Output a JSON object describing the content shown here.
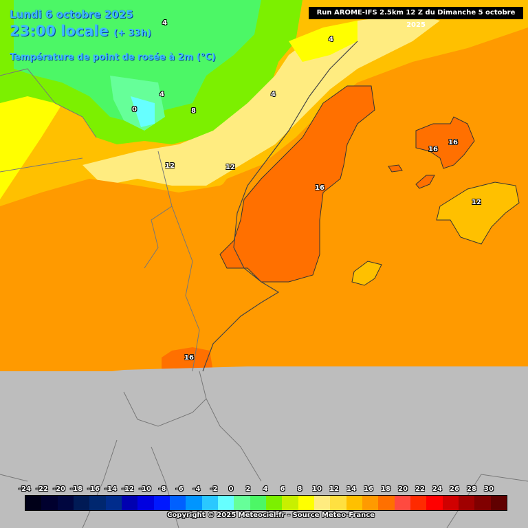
{
  "header": {
    "date": "Lundi 6 octobre 2025",
    "time": "23:00 locale",
    "lead": "(+ 33h)",
    "variable": "Température de point de rosée à 2m (°C)"
  },
  "run_info": "Run AROME-IFS 2.5km 12 Z du Dimanche 5 octobre 2025",
  "contour_labels": [
    "4",
    "4",
    "4",
    "4",
    "0",
    "8",
    "12",
    "12",
    "16",
    "16",
    "16",
    "12",
    "16"
  ],
  "legend": {
    "ticks": [
      "-24",
      "-22",
      "-20",
      "-18",
      "-16",
      "-14",
      "-12",
      "-10",
      "-8",
      "-6",
      "-4",
      "-2",
      "0",
      "2",
      "4",
      "6",
      "8",
      "10",
      "12",
      "14",
      "16",
      "18",
      "20",
      "22",
      "24",
      "26",
      "28",
      "30"
    ],
    "colors": [
      "#000018",
      "#00002e",
      "#00063f",
      "#001a55",
      "#00276f",
      "#002c8c",
      "#0000b0",
      "#0000e0",
      "#0018ff",
      "#0060ff",
      "#0095ff",
      "#2ac8ff",
      "#66ffff",
      "#66ff99",
      "#4cf766",
      "#7cf000",
      "#c8f000",
      "#ffff00",
      "#ffec80",
      "#ffe040",
      "#ffc000",
      "#ff9a00",
      "#ff7000",
      "#ff4a40",
      "#ff2a00",
      "#ff0000",
      "#d00000",
      "#a00000",
      "#800000",
      "#600000"
    ]
  },
  "copyright": "Copyright © 2025 Meteociel.fr - Source Meteo-France"
}
